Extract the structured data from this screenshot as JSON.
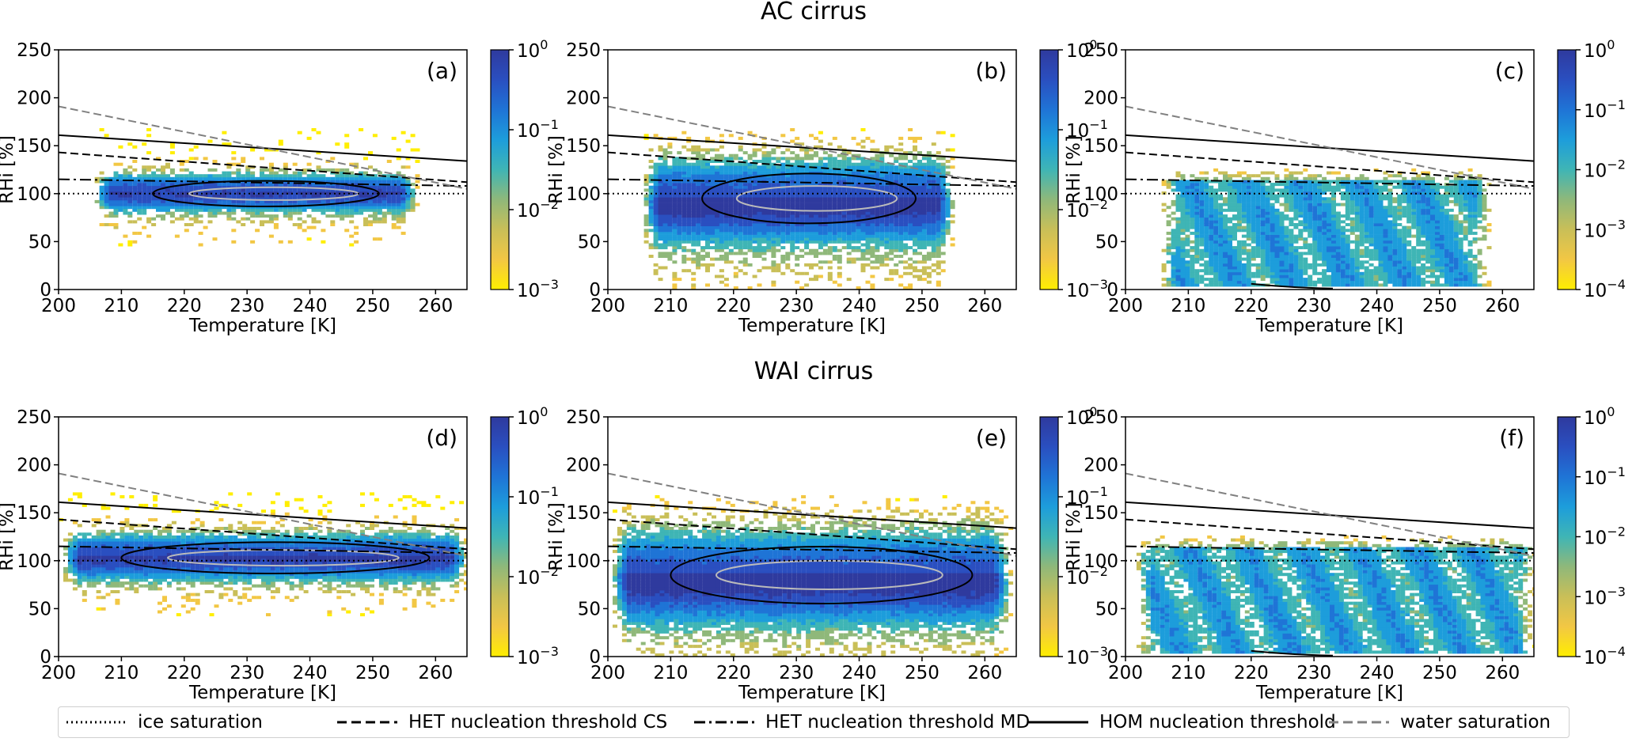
{
  "rows": [
    {
      "title": "AC cirrus"
    },
    {
      "title": "WAI cirrus"
    }
  ],
  "chart_data": [
    {
      "type": "heatmap",
      "panel_label": "(a)",
      "xlabel": "Temperature [K]",
      "ylabel": "RHi [%]",
      "xlim": [
        200,
        265
      ],
      "ylim": [
        0,
        250
      ],
      "x_ticks": [
        "200",
        "210",
        "220",
        "230",
        "240",
        "250",
        "260"
      ],
      "y_ticks": [
        "0",
        "50",
        "100",
        "150",
        "200",
        "250"
      ],
      "colorbar": {
        "scale": "log",
        "range": [
          0.001,
          1
        ],
        "ticks": [
          {
            "base": "10",
            "exp": "0"
          },
          {
            "base": "10",
            "exp": "−1"
          },
          {
            "base": "10",
            "exp": "−2"
          },
          {
            "base": "10",
            "exp": "−3"
          }
        ]
      },
      "distribution": {
        "t_min": 205,
        "t_max": 257,
        "rh_center": 100,
        "rh_spread": 18,
        "tail_low": 0.4,
        "sparse_high": 230,
        "pattern": "core"
      }
    },
    {
      "type": "heatmap",
      "panel_label": "(b)",
      "xlabel": "Temperature [K]",
      "ylabel": "RHi [%]",
      "xlim": [
        200,
        265
      ],
      "ylim": [
        0,
        250
      ],
      "x_ticks": [
        "200",
        "210",
        "220",
        "230",
        "240",
        "250",
        "260"
      ],
      "y_ticks": [
        "0",
        "50",
        "100",
        "150",
        "200",
        "250"
      ],
      "colorbar": {
        "scale": "log",
        "range": [
          0.001,
          1
        ],
        "ticks": [
          {
            "base": "10",
            "exp": "0"
          },
          {
            "base": "10",
            "exp": "−1"
          },
          {
            "base": "10",
            "exp": "−2"
          },
          {
            "base": "10",
            "exp": "−3"
          }
        ]
      },
      "distribution": {
        "t_min": 205,
        "t_max": 255,
        "rh_center": 95,
        "rh_spread": 35,
        "tail_low": 1.0,
        "sparse_high": 240,
        "pattern": "broad"
      }
    },
    {
      "type": "heatmap",
      "panel_label": "(c)",
      "xlabel": "Temperature [K]",
      "ylabel": "RHi [%]",
      "xlim": [
        200,
        265
      ],
      "ylim": [
        0,
        250
      ],
      "x_ticks": [
        "200",
        "210",
        "220",
        "230",
        "240",
        "250",
        "260"
      ],
      "y_ticks": [
        "0",
        "50",
        "100",
        "150",
        "200",
        "250"
      ],
      "colorbar": {
        "scale": "log",
        "range": [
          0.0001,
          1
        ],
        "ticks": [
          {
            "base": "10",
            "exp": "0"
          },
          {
            "base": "10",
            "exp": "−1"
          },
          {
            "base": "10",
            "exp": "−2"
          },
          {
            "base": "10",
            "exp": "−3"
          },
          {
            "base": "10",
            "exp": "−4"
          }
        ]
      },
      "distribution": {
        "t_min": 205,
        "t_max": 258,
        "rh_center": 60,
        "rh_spread": 50,
        "tail_low": 1.0,
        "sparse_high": 160,
        "pattern": "flat"
      }
    },
    {
      "type": "heatmap",
      "panel_label": "(d)",
      "xlabel": "Temperature [K]",
      "ylabel": "RHi [%]",
      "xlim": [
        200,
        265
      ],
      "ylim": [
        0,
        250
      ],
      "x_ticks": [
        "200",
        "210",
        "220",
        "230",
        "240",
        "250",
        "260"
      ],
      "y_ticks": [
        "0",
        "50",
        "100",
        "150",
        "200",
        "250"
      ],
      "colorbar": {
        "scale": "log",
        "range": [
          0.001,
          1
        ],
        "ticks": [
          {
            "base": "10",
            "exp": "0"
          },
          {
            "base": "10",
            "exp": "−1"
          },
          {
            "base": "10",
            "exp": "−2"
          },
          {
            "base": "10",
            "exp": "−3"
          }
        ]
      },
      "distribution": {
        "t_min": 200,
        "t_max": 265,
        "rh_center": 103,
        "rh_spread": 22,
        "tail_low": 0.5,
        "sparse_high": 240,
        "pattern": "core"
      }
    },
    {
      "type": "heatmap",
      "panel_label": "(e)",
      "xlabel": "Temperature [K]",
      "ylabel": "RHi [%]",
      "xlim": [
        200,
        265
      ],
      "ylim": [
        0,
        250
      ],
      "x_ticks": [
        "200",
        "210",
        "220",
        "230",
        "240",
        "250",
        "260"
      ],
      "y_ticks": [
        "0",
        "50",
        "100",
        "150",
        "200",
        "250"
      ],
      "colorbar": {
        "scale": "log",
        "range": [
          0.001,
          1
        ],
        "ticks": [
          {
            "base": "10",
            "exp": "0"
          },
          {
            "base": "10",
            "exp": "−1"
          },
          {
            "base": "10",
            "exp": "−2"
          },
          {
            "base": "10",
            "exp": "−3"
          }
        ]
      },
      "distribution": {
        "t_min": 200,
        "t_max": 264,
        "rh_center": 85,
        "rh_spread": 40,
        "tail_low": 1.0,
        "sparse_high": 245,
        "pattern": "broad"
      }
    },
    {
      "type": "heatmap",
      "panel_label": "(f)",
      "xlabel": "Temperature [K]",
      "ylabel": "RHi [%]",
      "xlim": [
        200,
        265
      ],
      "ylim": [
        0,
        250
      ],
      "x_ticks": [
        "200",
        "210",
        "220",
        "230",
        "240",
        "250",
        "260"
      ],
      "y_ticks": [
        "0",
        "50",
        "100",
        "150",
        "200",
        "250"
      ],
      "colorbar": {
        "scale": "log",
        "range": [
          0.0001,
          1
        ],
        "ticks": [
          {
            "base": "10",
            "exp": "0"
          },
          {
            "base": "10",
            "exp": "−1"
          },
          {
            "base": "10",
            "exp": "−2"
          },
          {
            "base": "10",
            "exp": "−3"
          },
          {
            "base": "10",
            "exp": "−4"
          }
        ]
      },
      "distribution": {
        "t_min": 201,
        "t_max": 265,
        "rh_center": 60,
        "rh_spread": 50,
        "tail_low": 1.0,
        "sparse_high": 215,
        "pattern": "flat"
      }
    }
  ],
  "reference_lines": [
    {
      "name": "ice saturation",
      "style": "dotted",
      "color": "#000000",
      "points": [
        [
          200,
          100
        ],
        [
          265,
          100
        ]
      ]
    },
    {
      "name": "HET nucleation threshold CS",
      "style": "dashed",
      "color": "#000000",
      "points": [
        [
          200,
          143
        ],
        [
          265,
          112
        ]
      ]
    },
    {
      "name": "HET nucleation threshold MD",
      "style": "dashdot",
      "color": "#000000",
      "points": [
        [
          200,
          115
        ],
        [
          265,
          108
        ]
      ]
    },
    {
      "name": "HOM nucleation threshold",
      "style": "solid",
      "color": "#000000",
      "points": [
        [
          200,
          161
        ],
        [
          265,
          134
        ]
      ]
    },
    {
      "name": "water saturation",
      "style": "dashed",
      "color": "#808080",
      "points": [
        [
          200,
          191
        ],
        [
          265,
          105
        ]
      ]
    }
  ],
  "colors": {
    "high": "#2f3a9e",
    "mid": "#1aa3d6",
    "low": "#7bbf8a",
    "lowest": "#ffee00"
  }
}
